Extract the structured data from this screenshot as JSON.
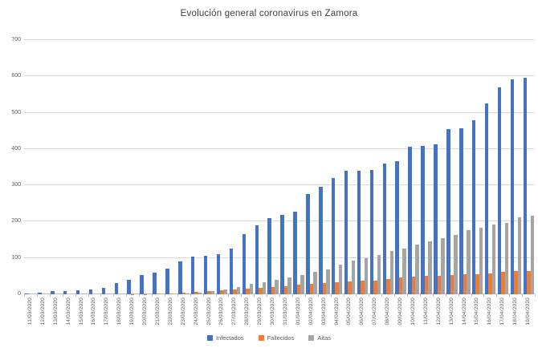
{
  "chart_data": {
    "type": "bar",
    "title": "Evolución general coronavirus en Zamora",
    "xlabel": "",
    "ylabel": "",
    "ylim": [
      0,
      700
    ],
    "yticks": [
      0,
      100,
      200,
      300,
      400,
      500,
      600,
      700
    ],
    "grid": true,
    "legend_position": "bottom",
    "categories": [
      "11/03/2020",
      "12/03/2020",
      "13/03/2020",
      "14/03/2020",
      "15/03/2020",
      "16/03/2020",
      "17/03/2020",
      "18/03/2020",
      "19/03/2020",
      "20/03/2020",
      "21/03/2020",
      "22/03/2020",
      "23/03/2020",
      "24/03/2020",
      "25/03/2020",
      "26/03/2020",
      "27/03/2020",
      "28/03/2020",
      "29/03/2020",
      "30/03/2020",
      "31/03/2020",
      "01/04/2020",
      "02/04/2020",
      "03/04/2020",
      "04/04/2020",
      "05/04/2020",
      "06/04/2020",
      "07/04/2020",
      "08/04/2020",
      "09/04/2020",
      "10/04/2020",
      "11/04/2020",
      "12/04/2020",
      "13/04/2020",
      "14/04/2020",
      "15/04/2020",
      "16/04/2020",
      "17/04/2020",
      "18/04/2020",
      "19/04/2020"
    ],
    "series": [
      {
        "name": "Infectados",
        "color": "#4472C4",
        "values": [
          2,
          4,
          8,
          8,
          11,
          14,
          18,
          30,
          40,
          54,
          60,
          71,
          90,
          104,
          106,
          110,
          127,
          165,
          190,
          210,
          218,
          227,
          277,
          296,
          320,
          340,
          340,
          342,
          360,
          367,
          406,
          408,
          413,
          455,
          458,
          480,
          526,
          570,
          592,
          597
        ]
      },
      {
        "name": "Fallecidos",
        "color": "#ED7D31",
        "values": [
          0,
          0,
          0,
          0,
          0,
          0,
          0,
          0,
          1,
          1,
          2,
          2,
          4,
          6,
          8,
          10,
          13,
          15,
          18,
          21,
          23,
          26,
          29,
          31,
          34,
          36,
          37,
          38,
          41,
          47,
          49,
          50,
          51,
          53,
          55,
          56,
          58,
          62,
          64,
          65
        ]
      },
      {
        "name": "Altas",
        "color": "#A5A5A5",
        "values": [
          0,
          0,
          0,
          0,
          0,
          0,
          0,
          0,
          0,
          0,
          0,
          0,
          2,
          4,
          9,
          14,
          20,
          28,
          33,
          40,
          46,
          53,
          61,
          69,
          82,
          92,
          100,
          108,
          119,
          126,
          136,
          145,
          155,
          163,
          176,
          184,
          193,
          197,
          212,
          216
        ]
      }
    ]
  }
}
